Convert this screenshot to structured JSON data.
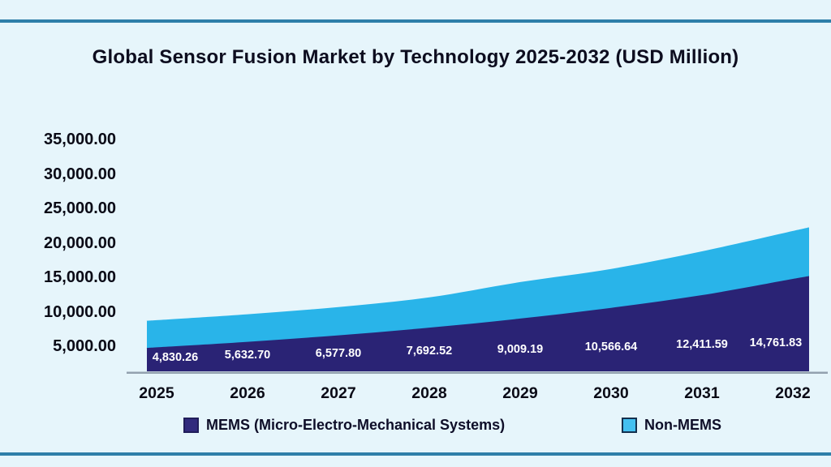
{
  "page": {
    "background_color": "#e6f5fb",
    "divider_color": "#2e7fa9"
  },
  "chart_data": {
    "type": "area",
    "stacked": true,
    "smoothed": true,
    "title": "Global Sensor Fusion Market by Technology 2025-2032 (USD Million)",
    "categories": [
      "2025",
      "2026",
      "2027",
      "2028",
      "2029",
      "2030",
      "2031",
      "2032"
    ],
    "series": [
      {
        "name": "MEMS (Micro-Electro-Mechanical Systems)",
        "color": "#2a2375",
        "values": [
          4830.26,
          5632.7,
          6577.8,
          7692.52,
          9009.19,
          10566.64,
          12411.59,
          14761.83
        ],
        "data_labels": [
          "4,830.26",
          "5,632.70",
          "6,577.80",
          "7,692.52",
          "9,009.19",
          "10,566.64",
          "12,411.59",
          "14,761.83"
        ],
        "data_label_color": "#ffffff"
      },
      {
        "name": "Non-MEMS",
        "color": "#29b4e9",
        "values_estimated": [
          3950,
          4000,
          4100,
          4400,
          5300,
          5650,
          6350,
          6950
        ],
        "note": "No data labels printed for this series in the image; values estimated from the plotted stacked area and axis scale."
      }
    ],
    "xlabel": "",
    "ylabel": "",
    "ylim": [
      0,
      35000
    ],
    "y_ticks": [
      "35,000.00",
      "30,000.00",
      "25,000.00",
      "20,000.00",
      "15,000.00",
      "10,000.00",
      "5,000.00"
    ],
    "y_tick_step": 5000,
    "grid": false,
    "legend_position": "bottom",
    "axis_line_color": "#93a1af"
  }
}
